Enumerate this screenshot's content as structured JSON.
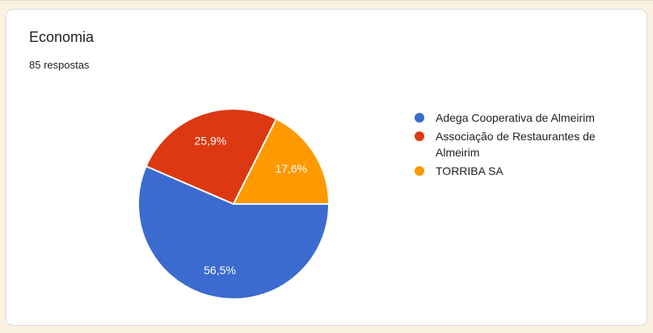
{
  "page": {
    "background_color": "#faf1e0"
  },
  "card": {
    "title": "Economia",
    "responses_label": "85 respostas",
    "background_color": "#ffffff",
    "border_color": "#dadce0"
  },
  "chart_data": {
    "type": "pie",
    "title": "Economia",
    "subtitle": "85 respostas",
    "total_responses": 85,
    "legend_position": "right",
    "start_angle_deg": 0,
    "direction": "clockwise",
    "label_color": "#ffffff",
    "slice_border_color": "#ffffff",
    "slices": [
      {
        "label": "Adega Cooperativa de Almeirim",
        "percent": 56.5,
        "percent_label": "56,5%",
        "color": "#3b6bce"
      },
      {
        "label": "Associação de Restaurantes de Almeirim",
        "percent": 25.9,
        "percent_label": "25,9%",
        "color": "#dc3912"
      },
      {
        "label": "TORRIBA SA",
        "percent": 17.6,
        "percent_label": "17,6%",
        "color": "#ff9900"
      }
    ]
  }
}
